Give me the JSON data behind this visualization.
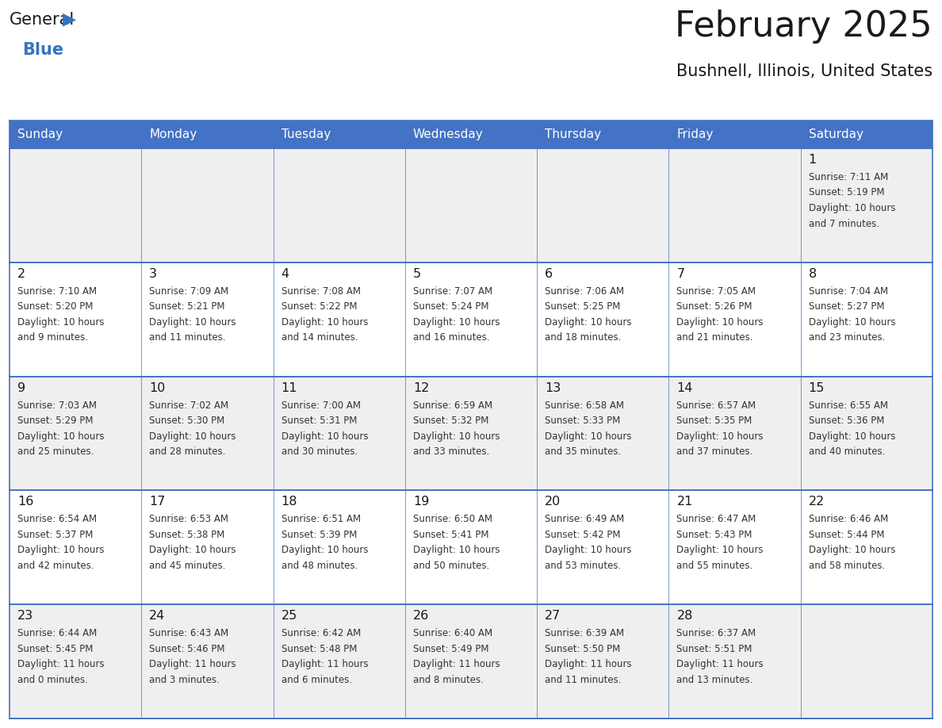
{
  "title": "February 2025",
  "subtitle": "Bushnell, Illinois, United States",
  "header_bg": "#4472C4",
  "header_text_color": "#FFFFFF",
  "cell_bg_white": "#FFFFFF",
  "cell_bg_gray": "#EFEFEF",
  "border_color": "#4472C4",
  "row_separator_color": "#4472C4",
  "day_names": [
    "Sunday",
    "Monday",
    "Tuesday",
    "Wednesday",
    "Thursday",
    "Friday",
    "Saturday"
  ],
  "title_color": "#1a1a1a",
  "subtitle_color": "#1a1a1a",
  "day_number_color": "#1a1a1a",
  "cell_text_color": "#333333",
  "logo_general_color": "#1a1a1a",
  "logo_blue_color": "#3575C0",
  "weeks": [
    [
      {
        "day": "",
        "info": ""
      },
      {
        "day": "",
        "info": ""
      },
      {
        "day": "",
        "info": ""
      },
      {
        "day": "",
        "info": ""
      },
      {
        "day": "",
        "info": ""
      },
      {
        "day": "",
        "info": ""
      },
      {
        "day": "1",
        "info": "Sunrise: 7:11 AM\nSunset: 5:19 PM\nDaylight: 10 hours\nand 7 minutes."
      }
    ],
    [
      {
        "day": "2",
        "info": "Sunrise: 7:10 AM\nSunset: 5:20 PM\nDaylight: 10 hours\nand 9 minutes."
      },
      {
        "day": "3",
        "info": "Sunrise: 7:09 AM\nSunset: 5:21 PM\nDaylight: 10 hours\nand 11 minutes."
      },
      {
        "day": "4",
        "info": "Sunrise: 7:08 AM\nSunset: 5:22 PM\nDaylight: 10 hours\nand 14 minutes."
      },
      {
        "day": "5",
        "info": "Sunrise: 7:07 AM\nSunset: 5:24 PM\nDaylight: 10 hours\nand 16 minutes."
      },
      {
        "day": "6",
        "info": "Sunrise: 7:06 AM\nSunset: 5:25 PM\nDaylight: 10 hours\nand 18 minutes."
      },
      {
        "day": "7",
        "info": "Sunrise: 7:05 AM\nSunset: 5:26 PM\nDaylight: 10 hours\nand 21 minutes."
      },
      {
        "day": "8",
        "info": "Sunrise: 7:04 AM\nSunset: 5:27 PM\nDaylight: 10 hours\nand 23 minutes."
      }
    ],
    [
      {
        "day": "9",
        "info": "Sunrise: 7:03 AM\nSunset: 5:29 PM\nDaylight: 10 hours\nand 25 minutes."
      },
      {
        "day": "10",
        "info": "Sunrise: 7:02 AM\nSunset: 5:30 PM\nDaylight: 10 hours\nand 28 minutes."
      },
      {
        "day": "11",
        "info": "Sunrise: 7:00 AM\nSunset: 5:31 PM\nDaylight: 10 hours\nand 30 minutes."
      },
      {
        "day": "12",
        "info": "Sunrise: 6:59 AM\nSunset: 5:32 PM\nDaylight: 10 hours\nand 33 minutes."
      },
      {
        "day": "13",
        "info": "Sunrise: 6:58 AM\nSunset: 5:33 PM\nDaylight: 10 hours\nand 35 minutes."
      },
      {
        "day": "14",
        "info": "Sunrise: 6:57 AM\nSunset: 5:35 PM\nDaylight: 10 hours\nand 37 minutes."
      },
      {
        "day": "15",
        "info": "Sunrise: 6:55 AM\nSunset: 5:36 PM\nDaylight: 10 hours\nand 40 minutes."
      }
    ],
    [
      {
        "day": "16",
        "info": "Sunrise: 6:54 AM\nSunset: 5:37 PM\nDaylight: 10 hours\nand 42 minutes."
      },
      {
        "day": "17",
        "info": "Sunrise: 6:53 AM\nSunset: 5:38 PM\nDaylight: 10 hours\nand 45 minutes."
      },
      {
        "day": "18",
        "info": "Sunrise: 6:51 AM\nSunset: 5:39 PM\nDaylight: 10 hours\nand 48 minutes."
      },
      {
        "day": "19",
        "info": "Sunrise: 6:50 AM\nSunset: 5:41 PM\nDaylight: 10 hours\nand 50 minutes."
      },
      {
        "day": "20",
        "info": "Sunrise: 6:49 AM\nSunset: 5:42 PM\nDaylight: 10 hours\nand 53 minutes."
      },
      {
        "day": "21",
        "info": "Sunrise: 6:47 AM\nSunset: 5:43 PM\nDaylight: 10 hours\nand 55 minutes."
      },
      {
        "day": "22",
        "info": "Sunrise: 6:46 AM\nSunset: 5:44 PM\nDaylight: 10 hours\nand 58 minutes."
      }
    ],
    [
      {
        "day": "23",
        "info": "Sunrise: 6:44 AM\nSunset: 5:45 PM\nDaylight: 11 hours\nand 0 minutes."
      },
      {
        "day": "24",
        "info": "Sunrise: 6:43 AM\nSunset: 5:46 PM\nDaylight: 11 hours\nand 3 minutes."
      },
      {
        "day": "25",
        "info": "Sunrise: 6:42 AM\nSunset: 5:48 PM\nDaylight: 11 hours\nand 6 minutes."
      },
      {
        "day": "26",
        "info": "Sunrise: 6:40 AM\nSunset: 5:49 PM\nDaylight: 11 hours\nand 8 minutes."
      },
      {
        "day": "27",
        "info": "Sunrise: 6:39 AM\nSunset: 5:50 PM\nDaylight: 11 hours\nand 11 minutes."
      },
      {
        "day": "28",
        "info": "Sunrise: 6:37 AM\nSunset: 5:51 PM\nDaylight: 11 hours\nand 13 minutes."
      },
      {
        "day": "",
        "info": ""
      }
    ]
  ]
}
